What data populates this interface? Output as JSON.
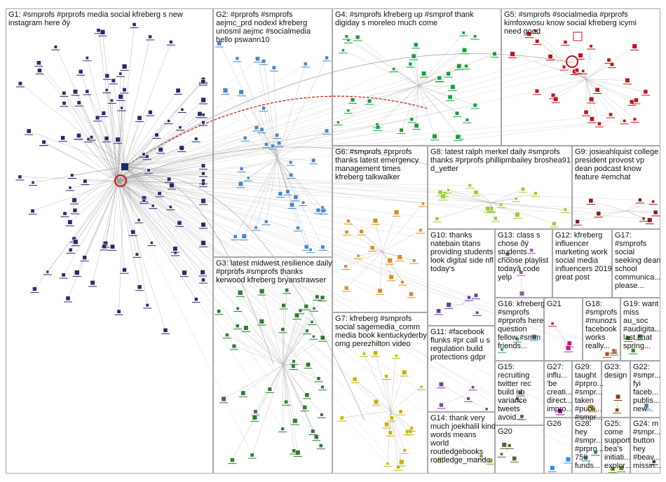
{
  "groups": [
    {
      "id": "g1",
      "label": "G1: #smprofs #prprofs media social kfreberg s new instagram here ðÿ"
    },
    {
      "id": "g2",
      "label": "G2: #prprofs #smprofs aejmc_prd nodexl kfreberg unosml aejmc #socialmedia hello pswann10"
    },
    {
      "id": "g3",
      "label": "G3: latest midwest resilience daily #prprofs #smprofs thanks kerwood kfreberg bryanstrawser"
    },
    {
      "id": "g4",
      "label": "G4: #smprofs kfreberg up #smprof thank digiday s moreleo much come"
    },
    {
      "id": "g5",
      "label": "G5: #smprofs #socialmedia #prprofs kimfoxwosu know social kfreberg icymi need good"
    },
    {
      "id": "g6",
      "label": "G6: #smprofs #prprofs thanks latest emergency management times kfreberg talkwalker"
    },
    {
      "id": "g7",
      "label": "G7: kfreberg #smprofs social sagemedia_comm media book kentuckyderby omg perezhilton video"
    },
    {
      "id": "g8",
      "label": "G8: latest ralph merkel daily #smprofs thanks #prprofs phillipmbailey broshea91 d_yetter"
    },
    {
      "id": "g9",
      "label": "G9: josieahlquist college president provost vp dean podcast know feature #emchat"
    },
    {
      "id": "g10",
      "label": "G10: thanks natebain titans providing students look digital side nfl today's"
    },
    {
      "id": "g11",
      "label": "G11: #facebook flunks #pr call u s regulation build protections gdpr"
    },
    {
      "id": "g12",
      "label": "G12: kfreberg influencer marketing work social media influencers 2019 great post"
    },
    {
      "id": "g13",
      "label": "G13: class s chose ðÿ students choose playlist todayâ code yelp"
    },
    {
      "id": "g14",
      "label": "G14: thank very much joekhalil kind words means world routledgebooks routledge_mandc"
    },
    {
      "id": "g15",
      "label": "G15: recruiting twitter rec build irb variance tweets avoid..."
    },
    {
      "id": "g16",
      "label": "G16: kfreberg #smprofs #prprofs here question fellow #smm friends..."
    },
    {
      "id": "g17",
      "label": "G17: #smprofs social seeking dean school communica... please..."
    },
    {
      "id": "g18",
      "label": "G18: #smprofs #munozs facebook works really..."
    },
    {
      "id": "g19",
      "label": "G19: want miss au_soc #audigita... last chat spring..."
    },
    {
      "id": "g20",
      "label": "G20"
    },
    {
      "id": "g21",
      "label": "G21"
    },
    {
      "id": "g22",
      "label": "G22: #smpr... fyi faceb... publis... new..."
    },
    {
      "id": "g23",
      "label": "G23: design"
    },
    {
      "id": "g24",
      "label": "G24: m #smpr... button hey #beav... missin..."
    },
    {
      "id": "g25",
      "label": "G25: come support bea's initiati... explor..."
    },
    {
      "id": "g26",
      "label": "G26"
    },
    {
      "id": "g27",
      "label": "G27: influ... 'be creati... direct... impro..."
    },
    {
      "id": "g28",
      "label": "G28: hey #smpr... #prpro... 750 funds..."
    },
    {
      "id": "g29",
      "label": "G29: taught #prpro... #smpr... taken #publi... #smpr..."
    }
  ],
  "colors": {
    "g1": "#2a2a6e",
    "g2": "#4a86c8",
    "g3": "#2e7d32",
    "g4": "#1b9e3a",
    "g5": "#c0141c",
    "g6": "#e08a1e",
    "g7": "#c8b400",
    "g8": "#9acd32",
    "g9": "#8b1a1a",
    "g10": "#6a3d9a",
    "g11": "#7b3fa0",
    "g12": "#b03060",
    "g13": "#9b59b6",
    "g14": "#999933",
    "g15": "#555555",
    "g16": "#3aa0a0",
    "g17": "#333399",
    "g18": "#a0522d",
    "g19": "#228b22",
    "g20": "#556b2f",
    "g21": "#c71585",
    "g22": "#4682b4",
    "g23": "#8b4513",
    "g24": "#2f4f4f",
    "g25": "#6b8e23",
    "g26": "#1e90ff",
    "g27": "#800080",
    "g28": "#008080",
    "g29": "#b8860b",
    "edge": "#9a9a9a",
    "edge_highlight": "#d01010",
    "border": "#a8a8a8"
  }
}
